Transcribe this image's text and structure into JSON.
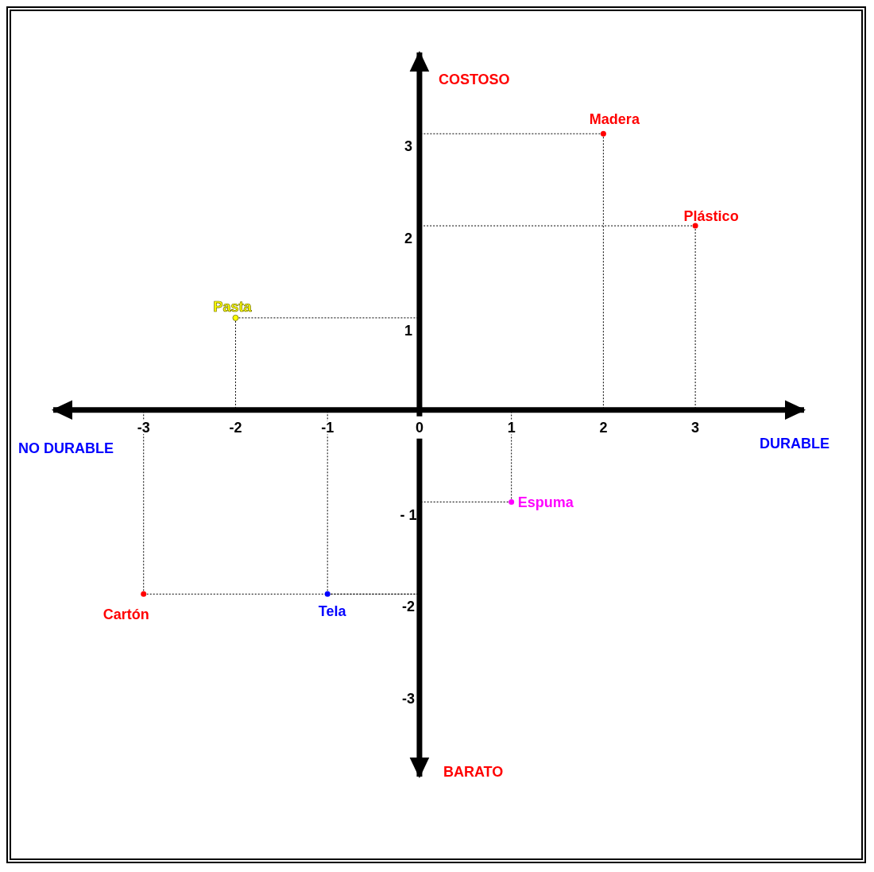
{
  "chart_data": {
    "type": "scatter",
    "xlabel": "DURABLE",
    "ylabel": "COSTOSO",
    "annotations": [
      "NO DURABLE",
      "BARATO"
    ],
    "xlim": [
      -4,
      4.2
    ],
    "ylim": [
      -4,
      3.9
    ],
    "xticks": [
      -3,
      -2,
      -1,
      0,
      1,
      2,
      3
    ],
    "yticks": [
      -3,
      -2,
      {
        "value": -1,
        "label": "- 1"
      },
      1,
      2,
      3
    ],
    "marker": "circle",
    "series": [
      {
        "name": "Madera",
        "color": "#ff0000",
        "x": [
          2
        ],
        "values": [
          3
        ]
      },
      {
        "name": "Plástico",
        "color": "#ff0000",
        "x": [
          3
        ],
        "values": [
          2
        ]
      },
      {
        "name": "Pasta",
        "color": "#ffff00",
        "x": [
          -2
        ],
        "values": [
          1
        ]
      },
      {
        "name": "Espuma",
        "color": "#ff00ff",
        "x": [
          1
        ],
        "values": [
          -1
        ]
      },
      {
        "name": "Cartón",
        "color": "#ff0000",
        "x": [
          -3
        ],
        "values": [
          -2
        ]
      },
      {
        "name": "Tela",
        "color": "#0000ff",
        "x": [
          -1
        ],
        "values": [
          -2
        ]
      }
    ]
  }
}
